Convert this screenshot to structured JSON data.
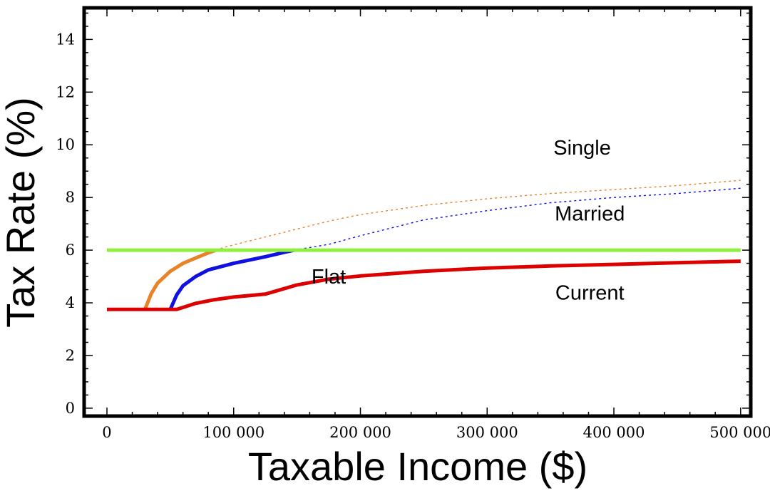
{
  "chart_data": {
    "type": "line",
    "title": "",
    "xlabel": "Taxable Income ($)",
    "ylabel": "Tax Rate (%)",
    "xlim": [
      -18000,
      508000
    ],
    "ylim": [
      -0.3,
      15.2
    ],
    "x_ticks": [
      0,
      100000,
      200000,
      300000,
      400000,
      500000
    ],
    "x_tick_labels": [
      "0",
      "100 000",
      "200 000",
      "300 000",
      "400 000",
      "500 000"
    ],
    "y_ticks": [
      0,
      2,
      4,
      6,
      8,
      10,
      12,
      14
    ],
    "y_tick_labels": [
      "0",
      "2",
      "4",
      "6",
      "8",
      "10",
      "12",
      "14"
    ],
    "grid": false,
    "legend": "none (series labelled directly on the plot)",
    "series": [
      {
        "name": "Flat",
        "color": "#8ef03c",
        "style": "solid",
        "x": [
          0,
          500000
        ],
        "y": [
          6.0,
          6.0
        ]
      },
      {
        "name": "Current",
        "color": "#dd0000",
        "style": "solid",
        "x": [
          0,
          55000,
          70000,
          85000,
          100000,
          125000,
          150000,
          175000,
          200000,
          250000,
          300000,
          350000,
          400000,
          450000,
          500000
        ],
        "y": [
          3.75,
          3.75,
          3.98,
          4.12,
          4.22,
          4.33,
          4.68,
          4.9,
          5.02,
          5.2,
          5.32,
          5.4,
          5.46,
          5.52,
          5.58
        ]
      },
      {
        "name": "Single",
        "color": "#e8832a",
        "style": "solid where above 6%, dotted after crossing the flat line",
        "x": [
          30000,
          35000,
          40000,
          50000,
          60000,
          70000,
          80000,
          90000,
          100000,
          125000,
          150000,
          175000,
          200000,
          250000,
          300000,
          350000,
          400000,
          450000,
          500000
        ],
        "y": [
          3.75,
          4.35,
          4.75,
          5.2,
          5.5,
          5.7,
          5.9,
          6.07,
          6.2,
          6.5,
          6.8,
          7.1,
          7.35,
          7.7,
          7.95,
          8.15,
          8.3,
          8.45,
          8.65
        ]
      },
      {
        "name": "Married",
        "color": "#1010e0",
        "style": "solid where above 6%, dotted after crossing the flat line",
        "x": [
          50000,
          55000,
          60000,
          70000,
          80000,
          100000,
          125000,
          140000,
          150000,
          175000,
          200000,
          250000,
          300000,
          350000,
          400000,
          450000,
          500000
        ],
        "y": [
          3.75,
          4.3,
          4.65,
          5.0,
          5.25,
          5.5,
          5.75,
          5.92,
          6.02,
          6.22,
          6.55,
          7.15,
          7.5,
          7.8,
          8.0,
          8.15,
          8.35
        ]
      }
    ],
    "annotations": [
      {
        "text": "Single",
        "x": 375000,
        "y": 9.9
      },
      {
        "text": "Married",
        "x": 381000,
        "y": 7.4
      },
      {
        "text": "Flat",
        "x": 175000,
        "y": 5.0
      },
      {
        "text": "Current",
        "x": 381000,
        "y": 4.4
      }
    ]
  }
}
